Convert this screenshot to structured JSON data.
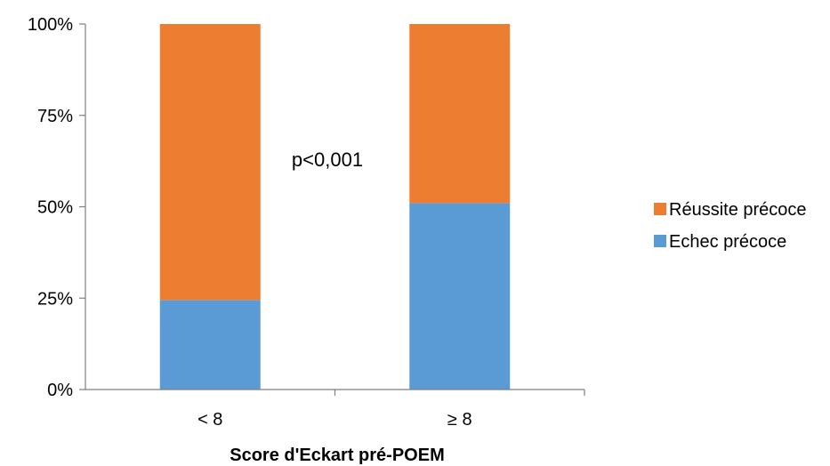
{
  "chart_data": {
    "type": "bar",
    "stacked": true,
    "percent": true,
    "categories": [
      "< 8",
      "≥ 8"
    ],
    "series": [
      {
        "name": "Echec précoce",
        "values": [
          24.5,
          51
        ],
        "color": "#5B9BD5"
      },
      {
        "name": "Réussite précoce",
        "values": [
          75.5,
          49
        ],
        "color": "#ED7D31"
      }
    ],
    "ylim": [
      0,
      100
    ],
    "yticks": [
      "0%",
      "25%",
      "50%",
      "75%",
      "100%"
    ],
    "ytick_values": [
      0,
      25,
      50,
      75,
      100
    ],
    "xlabel": "Score d'Eckart pré-POEM",
    "ylabel": "",
    "title": "",
    "annotation": "p<0,001",
    "grid": false,
    "legend_position": "right",
    "legend_order": [
      "Réussite précoce",
      "Echec précoce"
    ]
  }
}
